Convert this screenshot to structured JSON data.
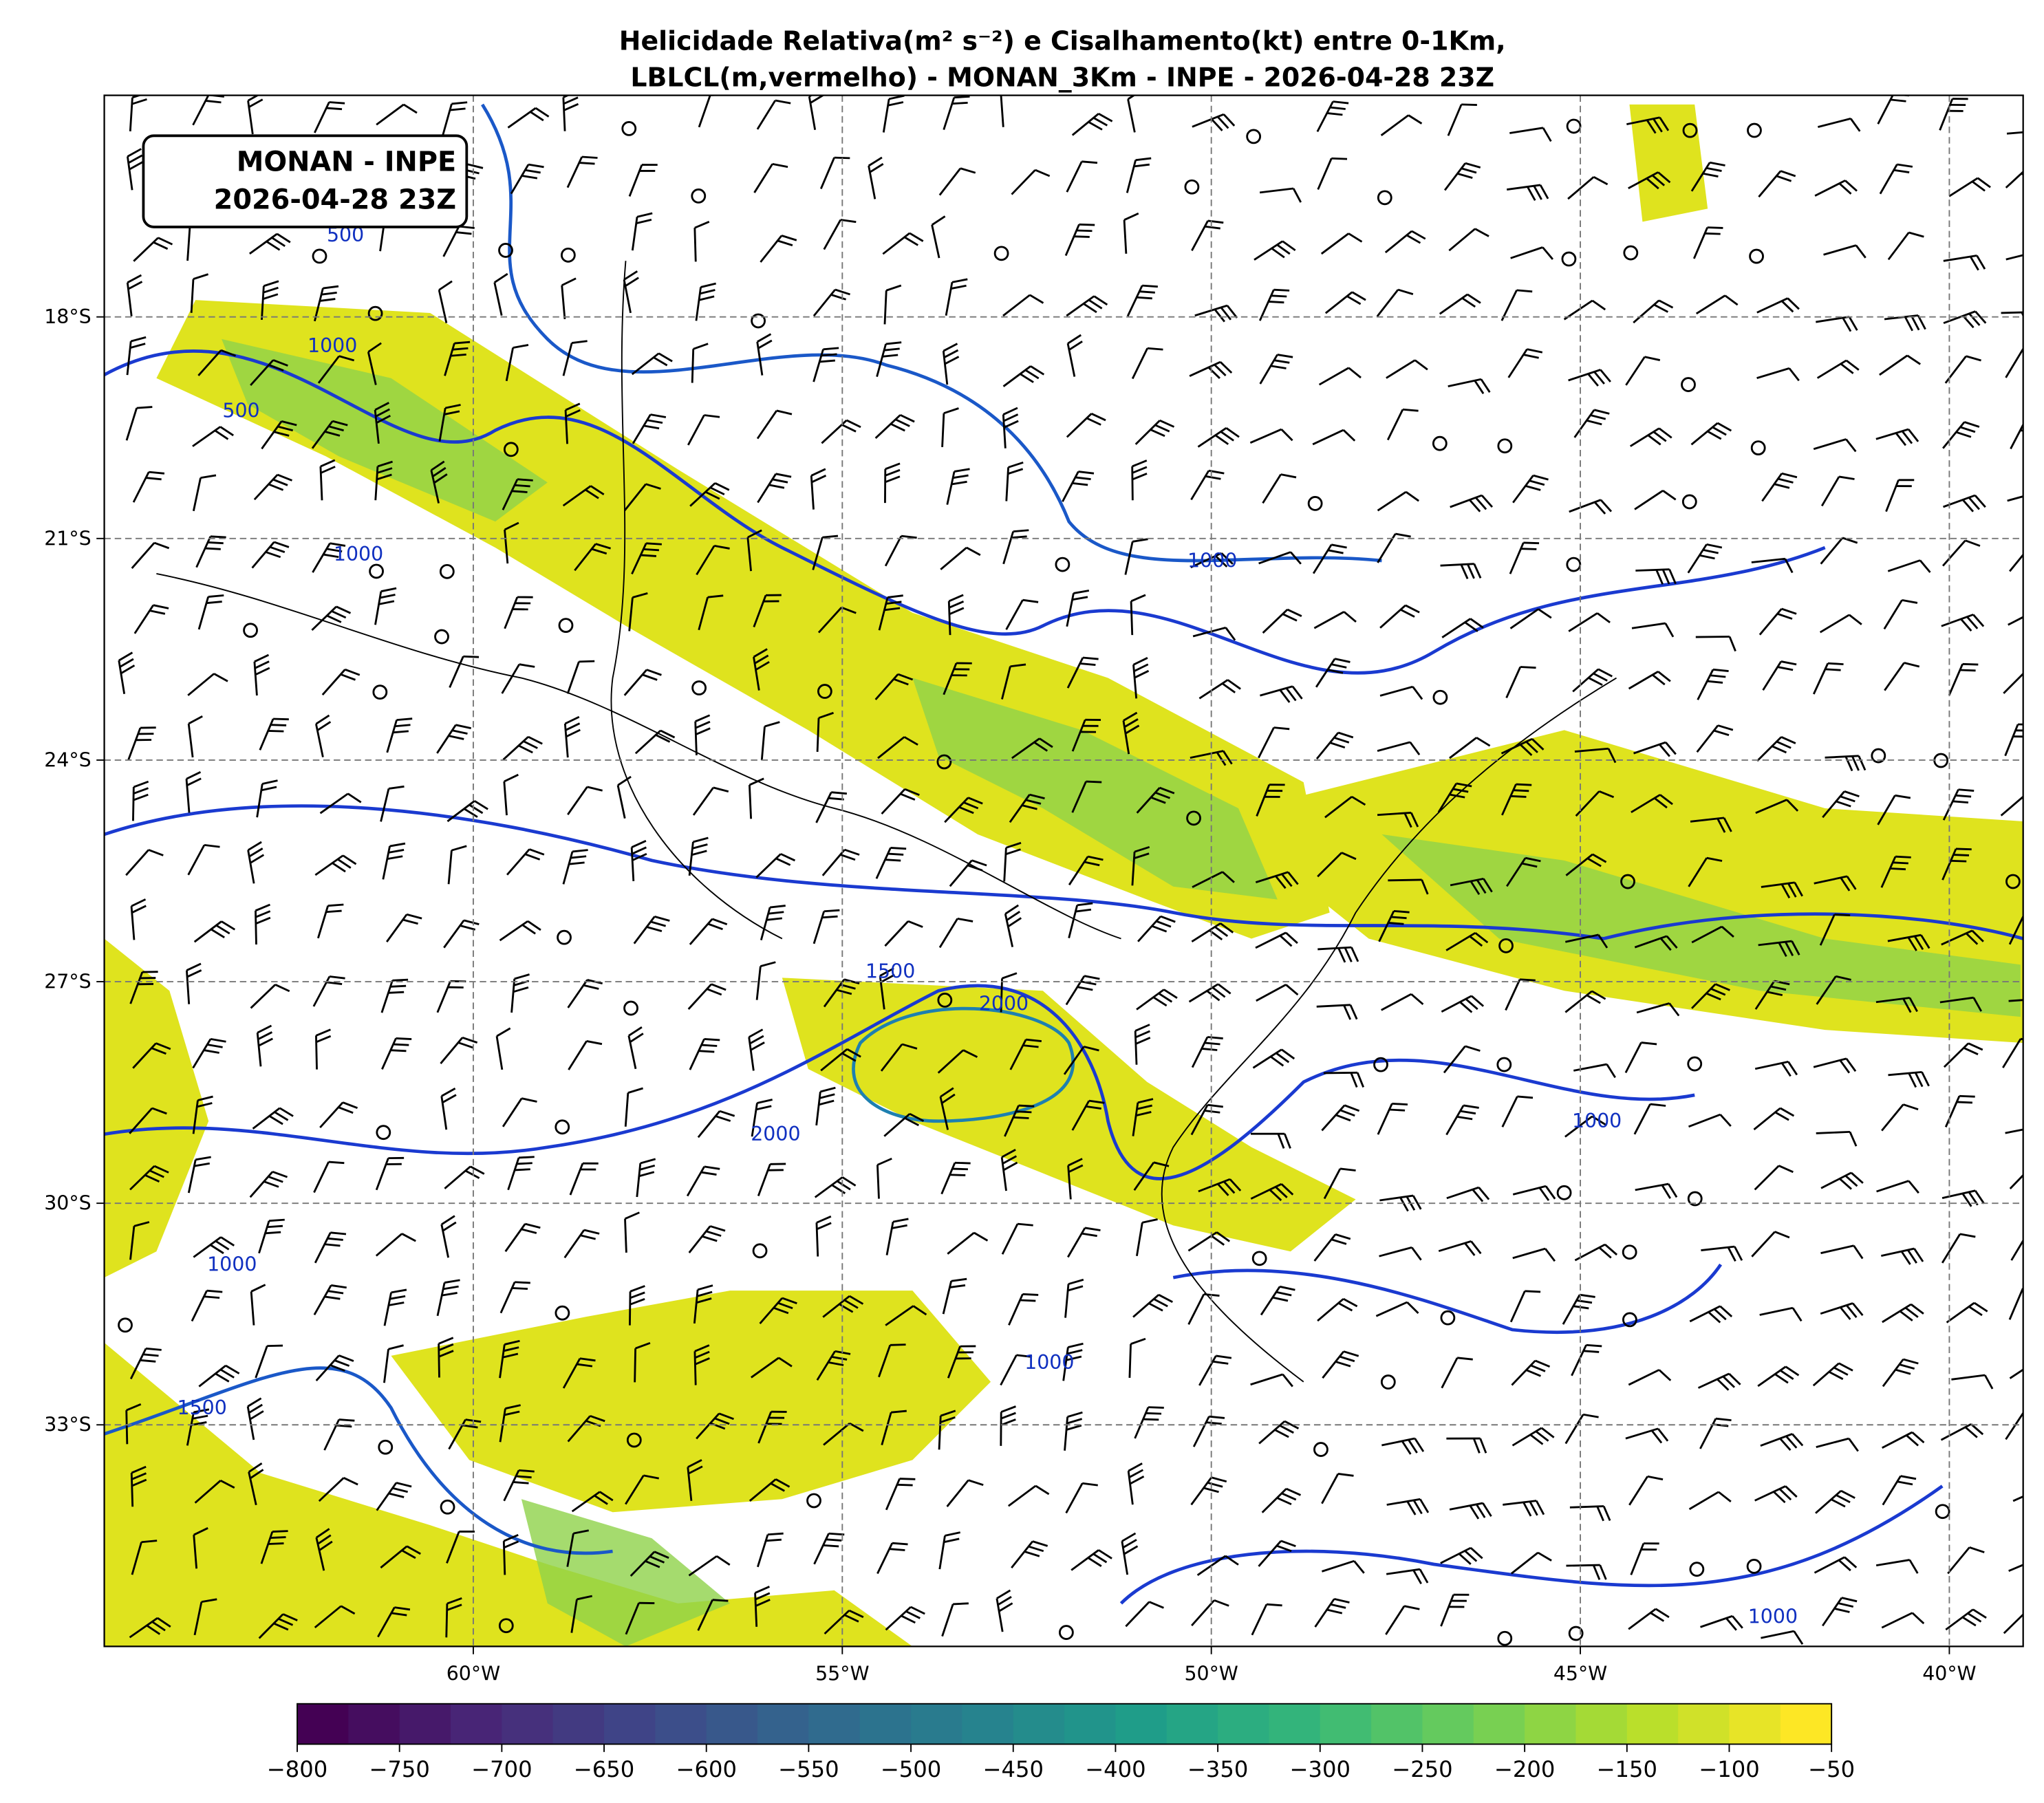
{
  "map": {
    "title": [
      "Helicidade Relativa(m² s⁻²) e Cisalhamento(kt) entre 0-1Km,",
      "LBLCL(m,vermelho) - MONAN_3Km - INPE - 2026-04-28 23Z"
    ],
    "annotation": [
      "MONAN - INPE",
      "2026-04-28 23Z"
    ],
    "lonlim": [
      -65,
      -39
    ],
    "latlim": [
      -36,
      -15
    ],
    "lonticks": [
      {
        "value": -60,
        "label": "60°W"
      },
      {
        "value": -55,
        "label": "55°W"
      },
      {
        "value": -50,
        "label": "50°W"
      },
      {
        "value": -45,
        "label": "45°W"
      },
      {
        "value": -40,
        "label": "40°W"
      }
    ],
    "latticks": [
      {
        "value": -18,
        "label": "18°S"
      },
      {
        "value": -21,
        "label": "21°S"
      },
      {
        "value": -24,
        "label": "24°S"
      },
      {
        "value": -27,
        "label": "27°S"
      },
      {
        "value": -30,
        "label": "30°S"
      },
      {
        "value": -33,
        "label": "33°S"
      }
    ],
    "grid": true,
    "contour_labels": [
      500,
      1000,
      500,
      1000,
      1000,
      1500,
      2000,
      2000,
      1000,
      1000,
      1500,
      1000,
      1000
    ],
    "colorbar": {
      "lim": [
        -800,
        -50
      ],
      "ticks": [
        {
          "value": -800,
          "label": "−800"
        },
        {
          "value": -750,
          "label": "−750"
        },
        {
          "value": -700,
          "label": "−700"
        },
        {
          "value": -650,
          "label": "−650"
        },
        {
          "value": -600,
          "label": "−600"
        },
        {
          "value": -550,
          "label": "−550"
        },
        {
          "value": -500,
          "label": "−500"
        },
        {
          "value": -450,
          "label": "−450"
        },
        {
          "value": -400,
          "label": "−400"
        },
        {
          "value": -350,
          "label": "−350"
        },
        {
          "value": -300,
          "label": "−300"
        },
        {
          "value": -250,
          "label": "−250"
        },
        {
          "value": -200,
          "label": "−200"
        },
        {
          "value": -150,
          "label": "−150"
        },
        {
          "value": -100,
          "label": "−100"
        },
        {
          "value": -50,
          "label": "−50"
        }
      ],
      "colors": [
        "#440154",
        "#482878",
        "#3e4989",
        "#31688e",
        "#26828e",
        "#1f9e89",
        "#35b779",
        "#6ece58",
        "#b5de2b",
        "#fde725"
      ]
    }
  }
}
